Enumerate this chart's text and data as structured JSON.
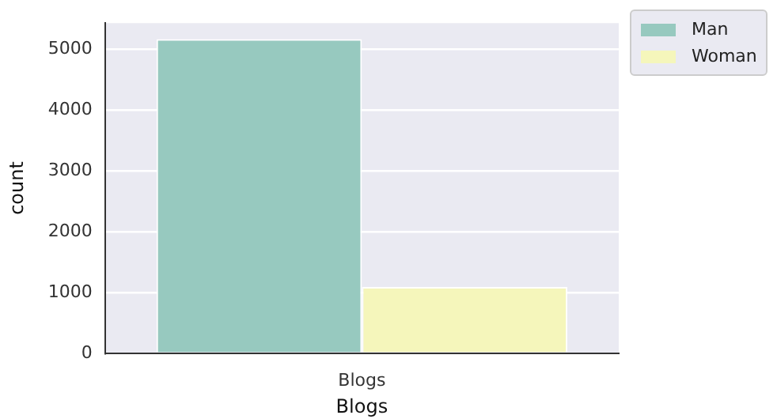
{
  "chart_data": {
    "type": "bar",
    "categories": [
      "Blogs"
    ],
    "xlabel": "Blogs",
    "ylabel": "count",
    "series": [
      {
        "name": "Man",
        "color": "#97c9bf",
        "values": [
          5160
        ]
      },
      {
        "name": "Woman",
        "color": "#f5f6bb",
        "values": [
          1090
        ]
      }
    ],
    "ylim": [
      0,
      5425
    ],
    "yticks": [
      0,
      1000,
      2000,
      3000,
      4000,
      5000
    ],
    "grid": "y",
    "legend": "top right"
  }
}
